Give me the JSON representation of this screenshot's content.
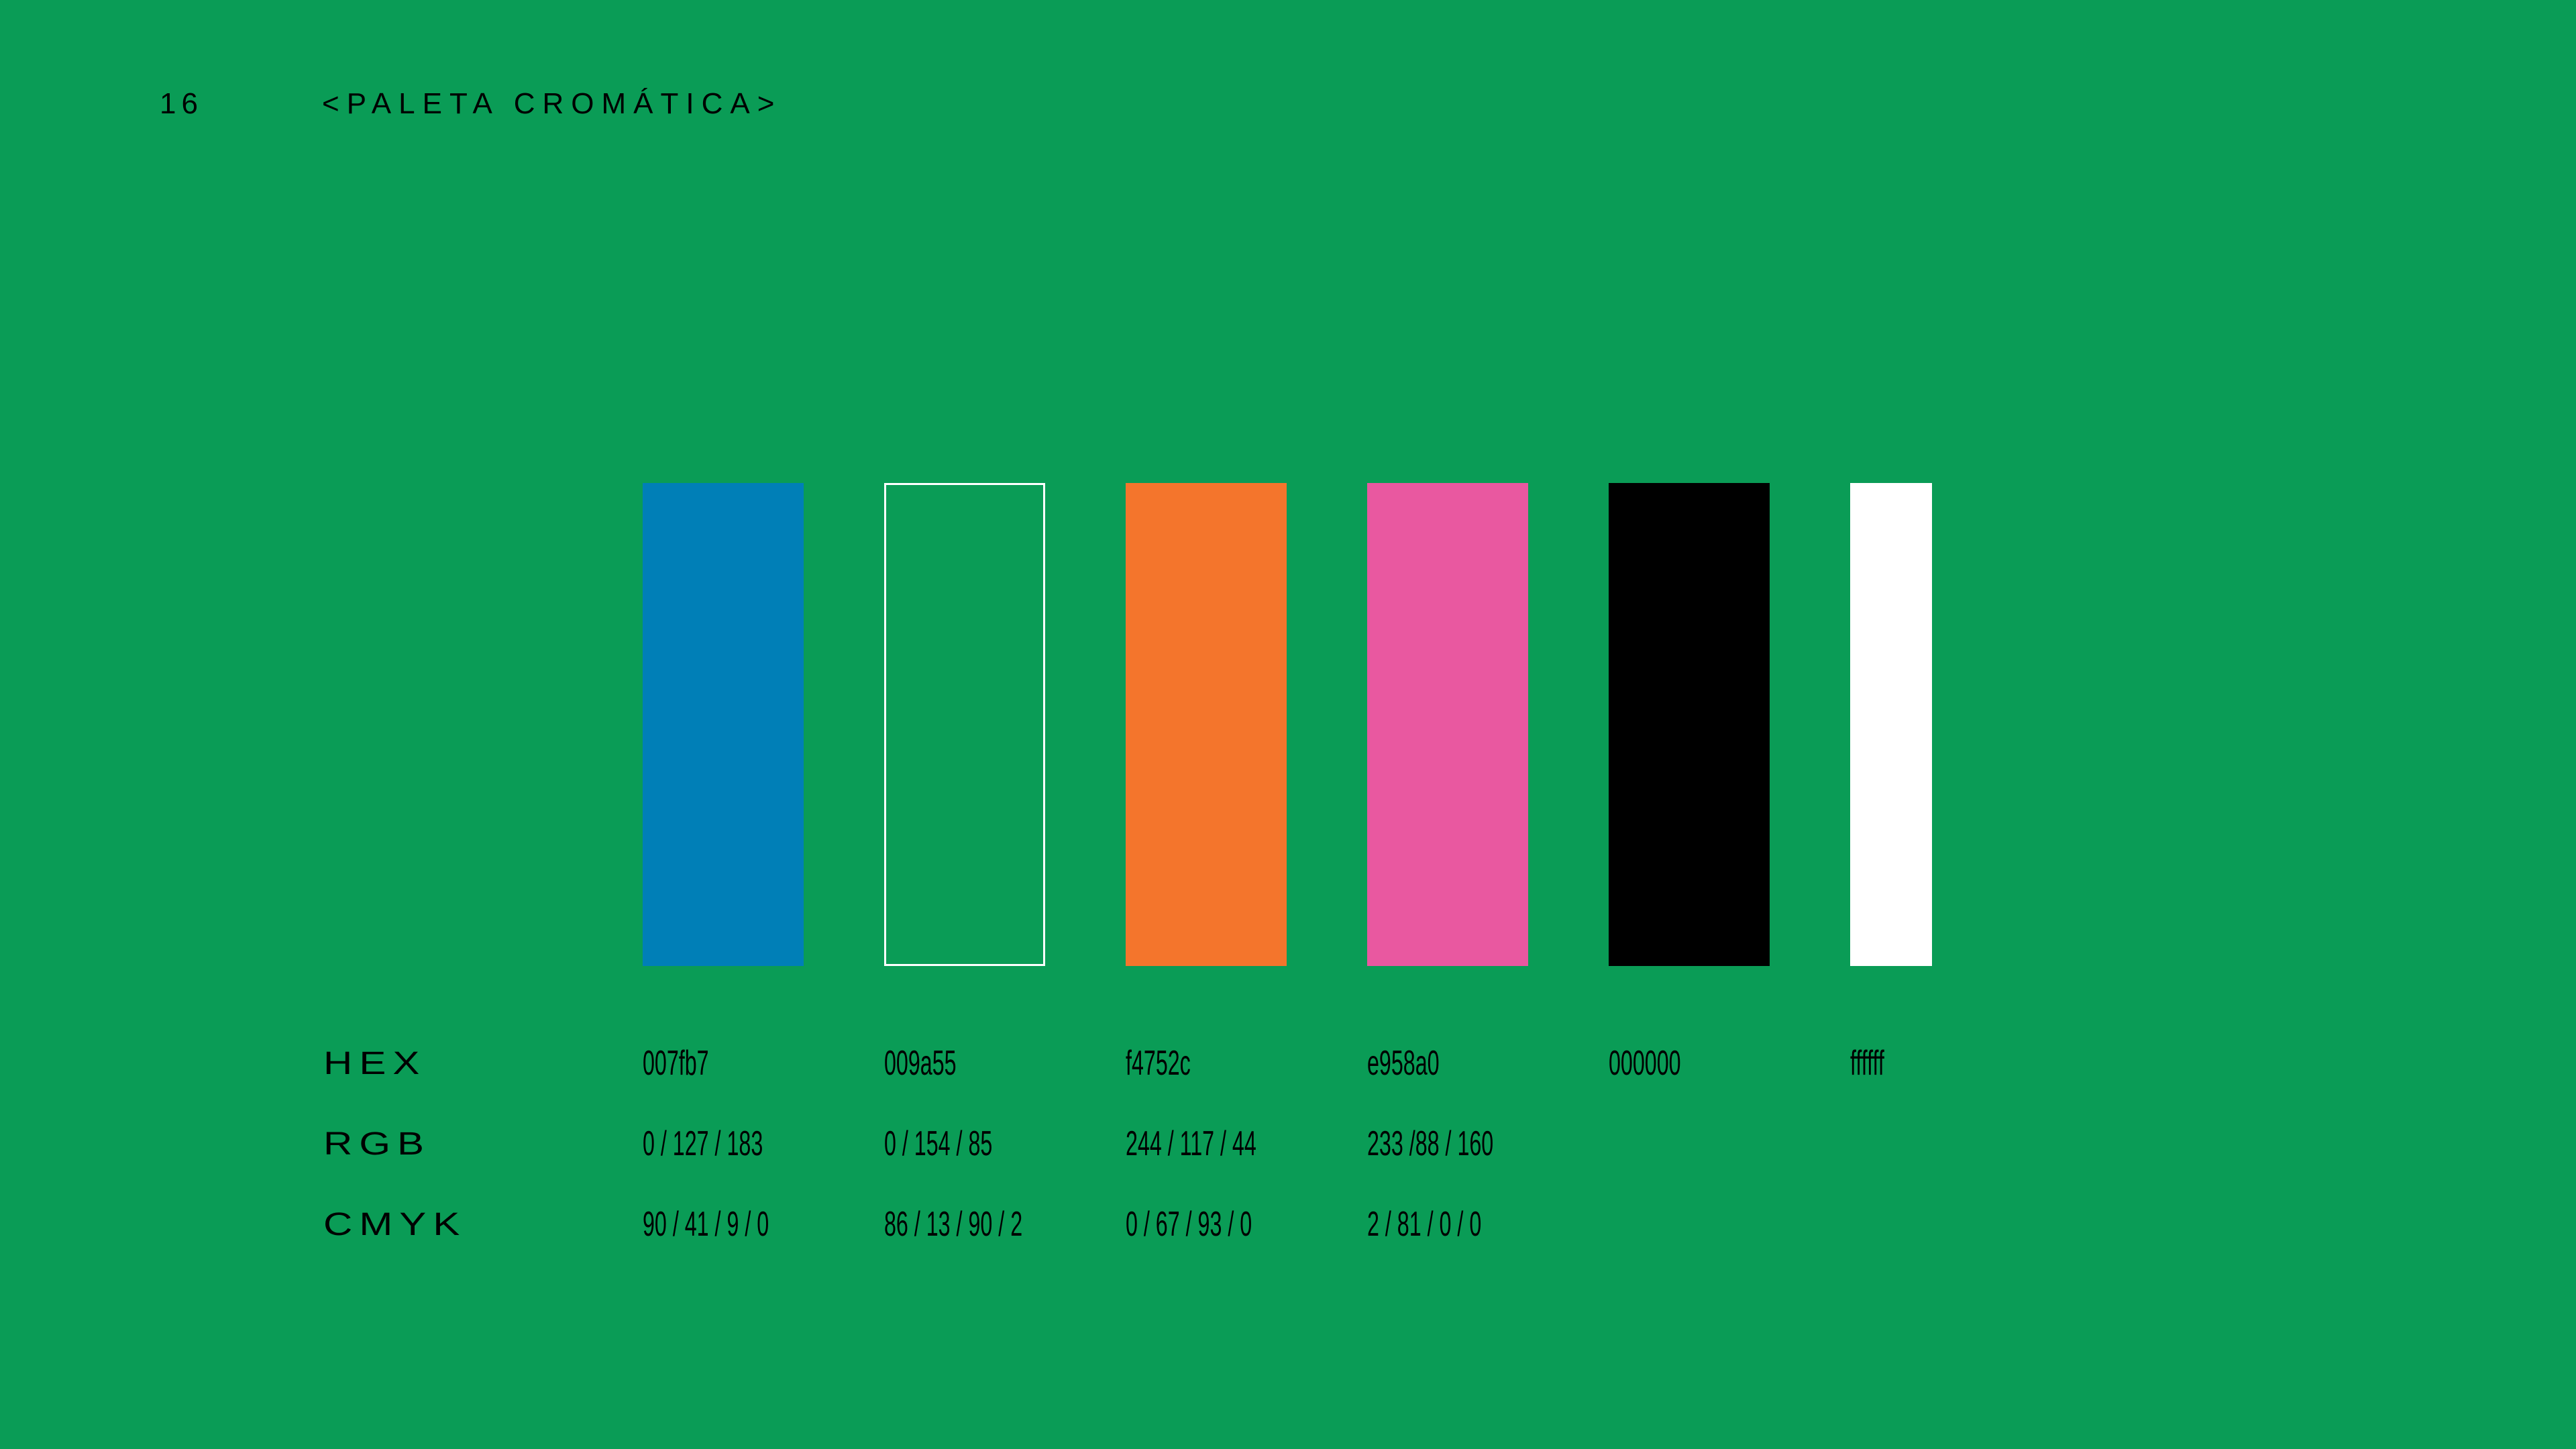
{
  "header": {
    "page_number": "16",
    "title": "<PALETA CROMÁTICA>"
  },
  "row_labels": {
    "hex": "HEX",
    "rgb": "RGB",
    "cmyk": "CMYK"
  },
  "swatches": [
    {
      "color": "#007fb7",
      "outlined": false,
      "hex": "007fb7",
      "rgb": "0 / 127 / 183",
      "cmyk": "90 / 41 / 9 / 0"
    },
    {
      "color": "#009a55",
      "outlined": true,
      "hex": "009a55",
      "rgb": "0 / 154 / 85",
      "cmyk": "86 / 13 / 90 / 2"
    },
    {
      "color": "#f4752c",
      "outlined": false,
      "hex": "f4752c",
      "rgb": "244 / 117 / 44",
      "cmyk": "0 / 67 / 93 / 0"
    },
    {
      "color": "#e958a0",
      "outlined": false,
      "hex": "e958a0",
      "rgb": "233 /88 / 160",
      "cmyk": "2 / 81 / 0 / 0"
    },
    {
      "color": "#000000",
      "outlined": false,
      "hex": "000000"
    },
    {
      "color": "#ffffff",
      "outlined": false,
      "hex": "ffffff"
    }
  ]
}
